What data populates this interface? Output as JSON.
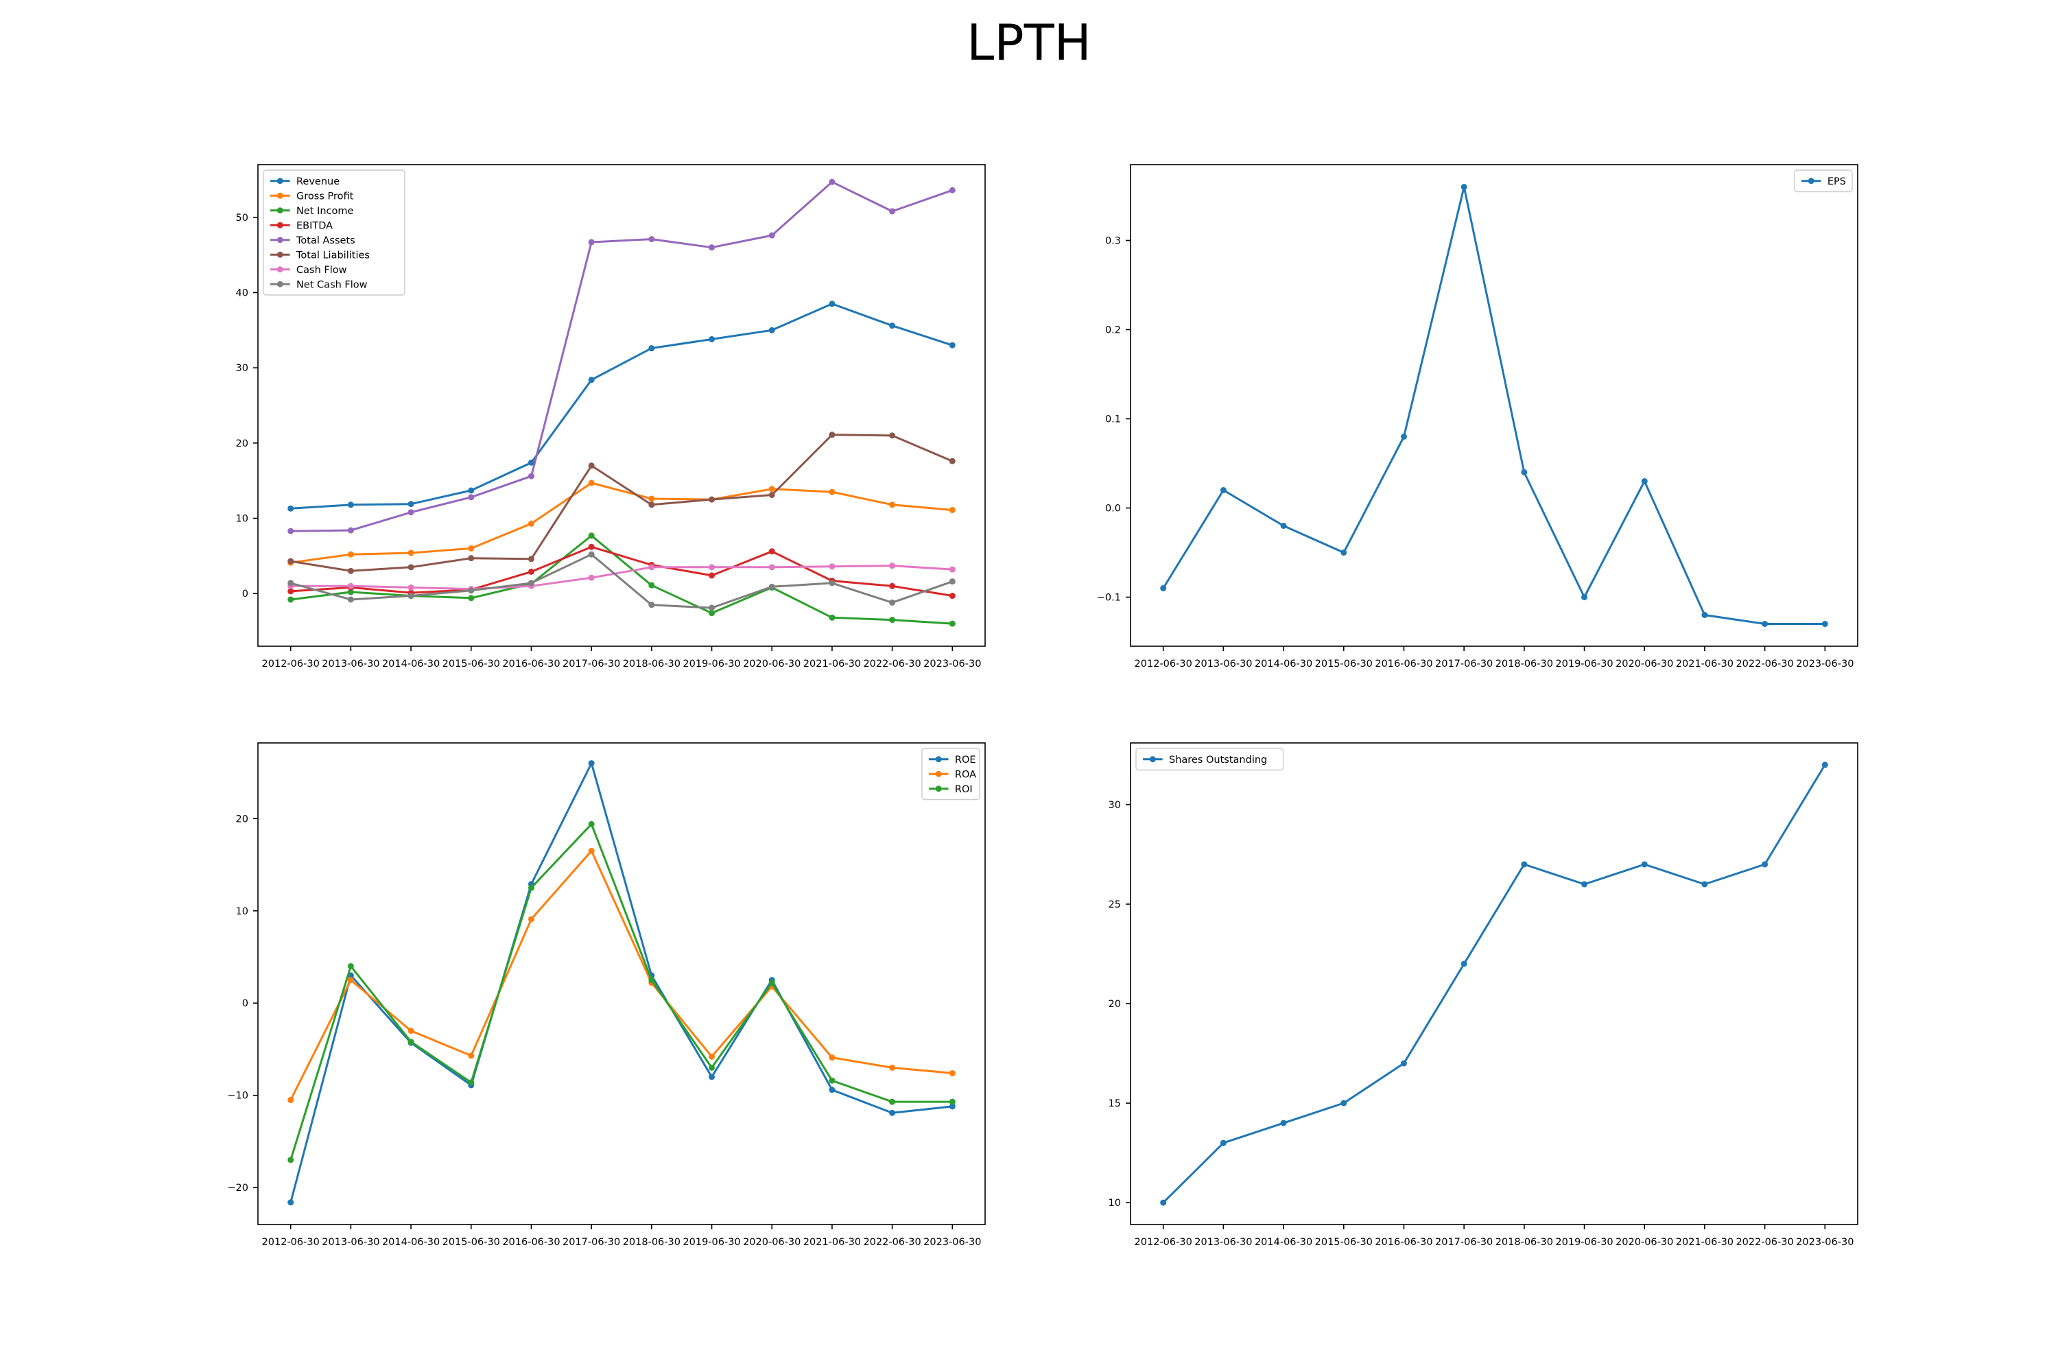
{
  "title": "LPTH",
  "chart_data": [
    {
      "type": "line",
      "categories": [
        "2012-06-30",
        "2013-06-30",
        "2014-06-30",
        "2015-06-30",
        "2016-06-30",
        "2017-06-30",
        "2018-06-30",
        "2019-06-30",
        "2020-06-30",
        "2021-06-30",
        "2022-06-30",
        "2023-06-30"
      ],
      "ylim": [
        -7,
        57
      ],
      "yticks": [
        0,
        10,
        20,
        30,
        40,
        50
      ],
      "legend_position": "upper-left",
      "series": [
        {
          "name": "Revenue",
          "color": "#1f77b4",
          "values": [
            11.3,
            11.8,
            11.9,
            13.7,
            17.4,
            28.4,
            32.6,
            33.8,
            35.0,
            38.5,
            35.6,
            33.0
          ]
        },
        {
          "name": "Gross Profit",
          "color": "#ff7f0e",
          "values": [
            4.1,
            5.2,
            5.4,
            6.0,
            9.3,
            14.7,
            12.6,
            12.5,
            13.9,
            13.5,
            11.8,
            11.1
          ]
        },
        {
          "name": "Net Income",
          "color": "#2ca02c",
          "values": [
            -0.8,
            0.2,
            -0.3,
            -0.6,
            1.3,
            7.7,
            1.1,
            -2.6,
            0.8,
            -3.2,
            -3.5,
            -4.0
          ]
        },
        {
          "name": "EBITDA",
          "color": "#d62728",
          "values": [
            0.3,
            0.8,
            0.1,
            0.5,
            2.9,
            6.2,
            3.8,
            2.4,
            5.6,
            1.7,
            1.0,
            -0.3
          ]
        },
        {
          "name": "Total Assets",
          "color": "#9467bd",
          "values": [
            8.3,
            8.4,
            10.8,
            12.8,
            15.6,
            46.7,
            47.1,
            46.0,
            47.6,
            54.7,
            50.8,
            53.6
          ]
        },
        {
          "name": "Total Liabilities",
          "color": "#8c564b",
          "values": [
            4.3,
            3.0,
            3.5,
            4.7,
            4.6,
            17.0,
            11.8,
            12.5,
            13.1,
            21.1,
            21.0,
            17.6
          ]
        },
        {
          "name": "Cash Flow",
          "color": "#e377c2",
          "values": [
            1.0,
            1.0,
            0.8,
            0.6,
            1.0,
            2.1,
            3.5,
            3.5,
            3.5,
            3.6,
            3.7,
            3.2
          ]
        },
        {
          "name": "Net Cash Flow",
          "color": "#7f7f7f",
          "values": [
            1.4,
            -0.8,
            -0.3,
            0.4,
            1.4,
            5.2,
            -1.5,
            -1.9,
            0.9,
            1.4,
            -1.2,
            1.6
          ]
        }
      ]
    },
    {
      "type": "line",
      "categories": [
        "2012-06-30",
        "2013-06-30",
        "2014-06-30",
        "2015-06-30",
        "2016-06-30",
        "2017-06-30",
        "2018-06-30",
        "2019-06-30",
        "2020-06-30",
        "2021-06-30",
        "2022-06-30",
        "2023-06-30"
      ],
      "ylim": [
        -0.155,
        0.385
      ],
      "yticks": [
        -0.1,
        0.0,
        0.1,
        0.2,
        0.3
      ],
      "yticklabels": [
        "−0.1",
        "0.0",
        "0.1",
        "0.2",
        "0.3"
      ],
      "legend_position": "upper-right",
      "series": [
        {
          "name": "EPS",
          "color": "#1f77b4",
          "values": [
            -0.09,
            0.02,
            -0.02,
            -0.05,
            0.08,
            0.36,
            0.04,
            -0.1,
            0.03,
            -0.12,
            -0.13,
            -0.13
          ]
        }
      ]
    },
    {
      "type": "line",
      "categories": [
        "2012-06-30",
        "2013-06-30",
        "2014-06-30",
        "2015-06-30",
        "2016-06-30",
        "2017-06-30",
        "2018-06-30",
        "2019-06-30",
        "2020-06-30",
        "2021-06-30",
        "2022-06-30",
        "2023-06-30"
      ],
      "ylim": [
        -24,
        28.2
      ],
      "yticks": [
        -20,
        -10,
        0,
        10,
        20
      ],
      "yticklabels": [
        "−20",
        "−10",
        "0",
        "10",
        "20"
      ],
      "legend_position": "upper-right",
      "series": [
        {
          "name": "ROE",
          "color": "#1f77b4",
          "values": [
            -21.6,
            3.0,
            -4.3,
            -8.9,
            12.9,
            26.0,
            3.0,
            -8.0,
            2.5,
            -9.4,
            -11.9,
            -11.2
          ]
        },
        {
          "name": "ROA",
          "color": "#ff7f0e",
          "values": [
            -10.5,
            2.5,
            -3.0,
            -5.7,
            9.1,
            16.5,
            2.2,
            -5.8,
            1.8,
            -5.9,
            -7.0,
            -7.6
          ]
        },
        {
          "name": "ROI",
          "color": "#2ca02c",
          "values": [
            -17.0,
            4.0,
            -4.2,
            -8.6,
            12.5,
            19.4,
            2.5,
            -7.0,
            2.2,
            -8.4,
            -10.7,
            -10.7
          ]
        }
      ]
    },
    {
      "type": "line",
      "categories": [
        "2012-06-30",
        "2013-06-30",
        "2014-06-30",
        "2015-06-30",
        "2016-06-30",
        "2017-06-30",
        "2018-06-30",
        "2019-06-30",
        "2020-06-30",
        "2021-06-30",
        "2022-06-30",
        "2023-06-30"
      ],
      "ylim": [
        8.9,
        33.1
      ],
      "yticks": [
        10,
        15,
        20,
        25,
        30
      ],
      "legend_position": "upper-left",
      "series": [
        {
          "name": "Shares Outstanding",
          "color": "#1f77b4",
          "values": [
            10,
            13,
            14,
            15,
            17,
            22,
            27,
            26,
            27,
            26,
            27,
            32
          ]
        }
      ]
    }
  ]
}
